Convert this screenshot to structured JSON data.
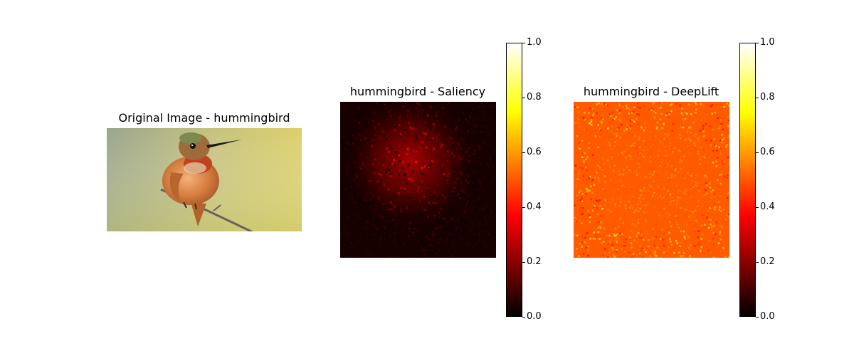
{
  "figure": {
    "panels": [
      {
        "title": "Original Image - hummingbird"
      },
      {
        "title": "hummingbird - Saliency"
      },
      {
        "title": "hummingbird - DeepLift"
      }
    ]
  },
  "chart_data": [
    {
      "type": "image",
      "title": "Original Image - hummingbird"
    },
    {
      "type": "heatmap",
      "title": "hummingbird - Saliency",
      "colormap": "hot",
      "colorbar": {
        "range": [
          0.0,
          1.0
        ],
        "ticks": [
          "0.0",
          "0.2",
          "0.4",
          "0.6",
          "0.8",
          "1.0"
        ]
      },
      "typical_value_range": [
        0.0,
        0.45
      ]
    },
    {
      "type": "heatmap",
      "title": "hummingbird - DeepLift",
      "colormap": "hot",
      "colorbar": {
        "range": [
          0.0,
          1.0
        ],
        "ticks": [
          "0.0",
          "0.2",
          "0.4",
          "0.6",
          "0.8",
          "1.0"
        ]
      },
      "typical_value_range": [
        0.35,
        0.75
      ]
    }
  ],
  "colors": {
    "hot_low": "#000000",
    "hot_mid_red": "#ff0000",
    "hot_mid_yellow": "#ffff00",
    "hot_high": "#ffffff"
  }
}
